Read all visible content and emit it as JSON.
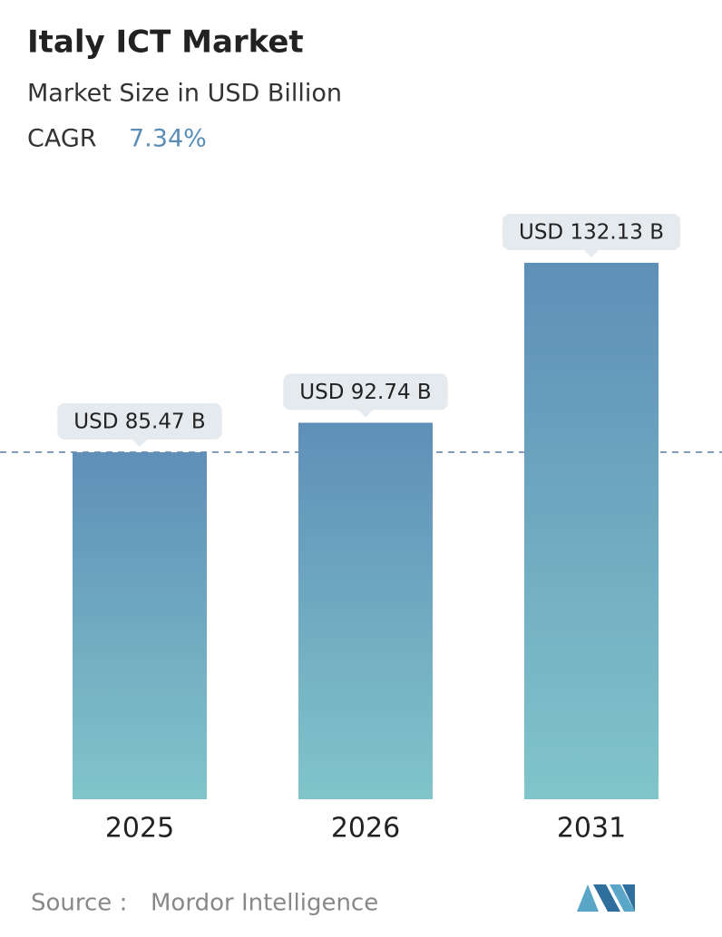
{
  "chart_data": {
    "type": "bar",
    "title": "Italy ICT Market",
    "subtitle": "Market Size in USD Billion",
    "cagr_label": "CAGR",
    "cagr": "7.34%",
    "categories": [
      "2025",
      "2026",
      "2031"
    ],
    "values": [
      85.47,
      92.74,
      132.13
    ],
    "value_labels": [
      "USD 85.47 B",
      "USD 92.74 B",
      "USD 132.13 B"
    ],
    "color_top": "#5f8fb8",
    "color_bottom": "#80c5ca",
    "source_label": "Source :",
    "source": "Mordor Intelligence"
  }
}
